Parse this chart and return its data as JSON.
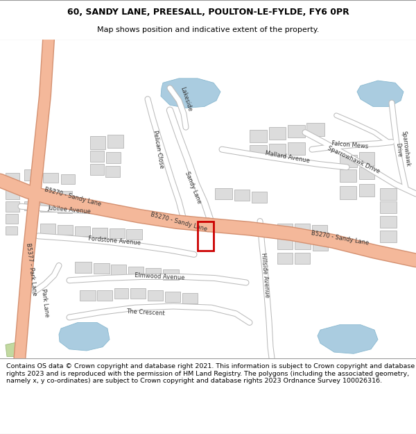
{
  "title_line1": "60, SANDY LANE, PREESALL, POULTON-LE-FYLDE, FY6 0PR",
  "title_line2": "Map shows position and indicative extent of the property.",
  "footer_text": "Contains OS data © Crown copyright and database right 2021. This information is subject to Crown copyright and database rights 2023 and is reproduced with the permission of HM Land Registry. The polygons (including the associated geometry, namely x, y co-ordinates) are subject to Crown copyright and database rights 2023 Ordnance Survey 100026316.",
  "map_bg": "#f2f0ed",
  "road_main_color": "#f4b89a",
  "road_main_border": "#d49070",
  "road_minor_color": "#ffffff",
  "road_minor_border": "#bbbbbb",
  "building_color": "#dcdcdc",
  "building_border": "#aaaaaa",
  "water_color": "#aacce0",
  "property_color": "#cc0000",
  "title_fontsize": 9.0,
  "subtitle_fontsize": 8.0,
  "footer_fontsize": 6.8,
  "label_fontsize": 6.0,
  "label_color": "#333333"
}
